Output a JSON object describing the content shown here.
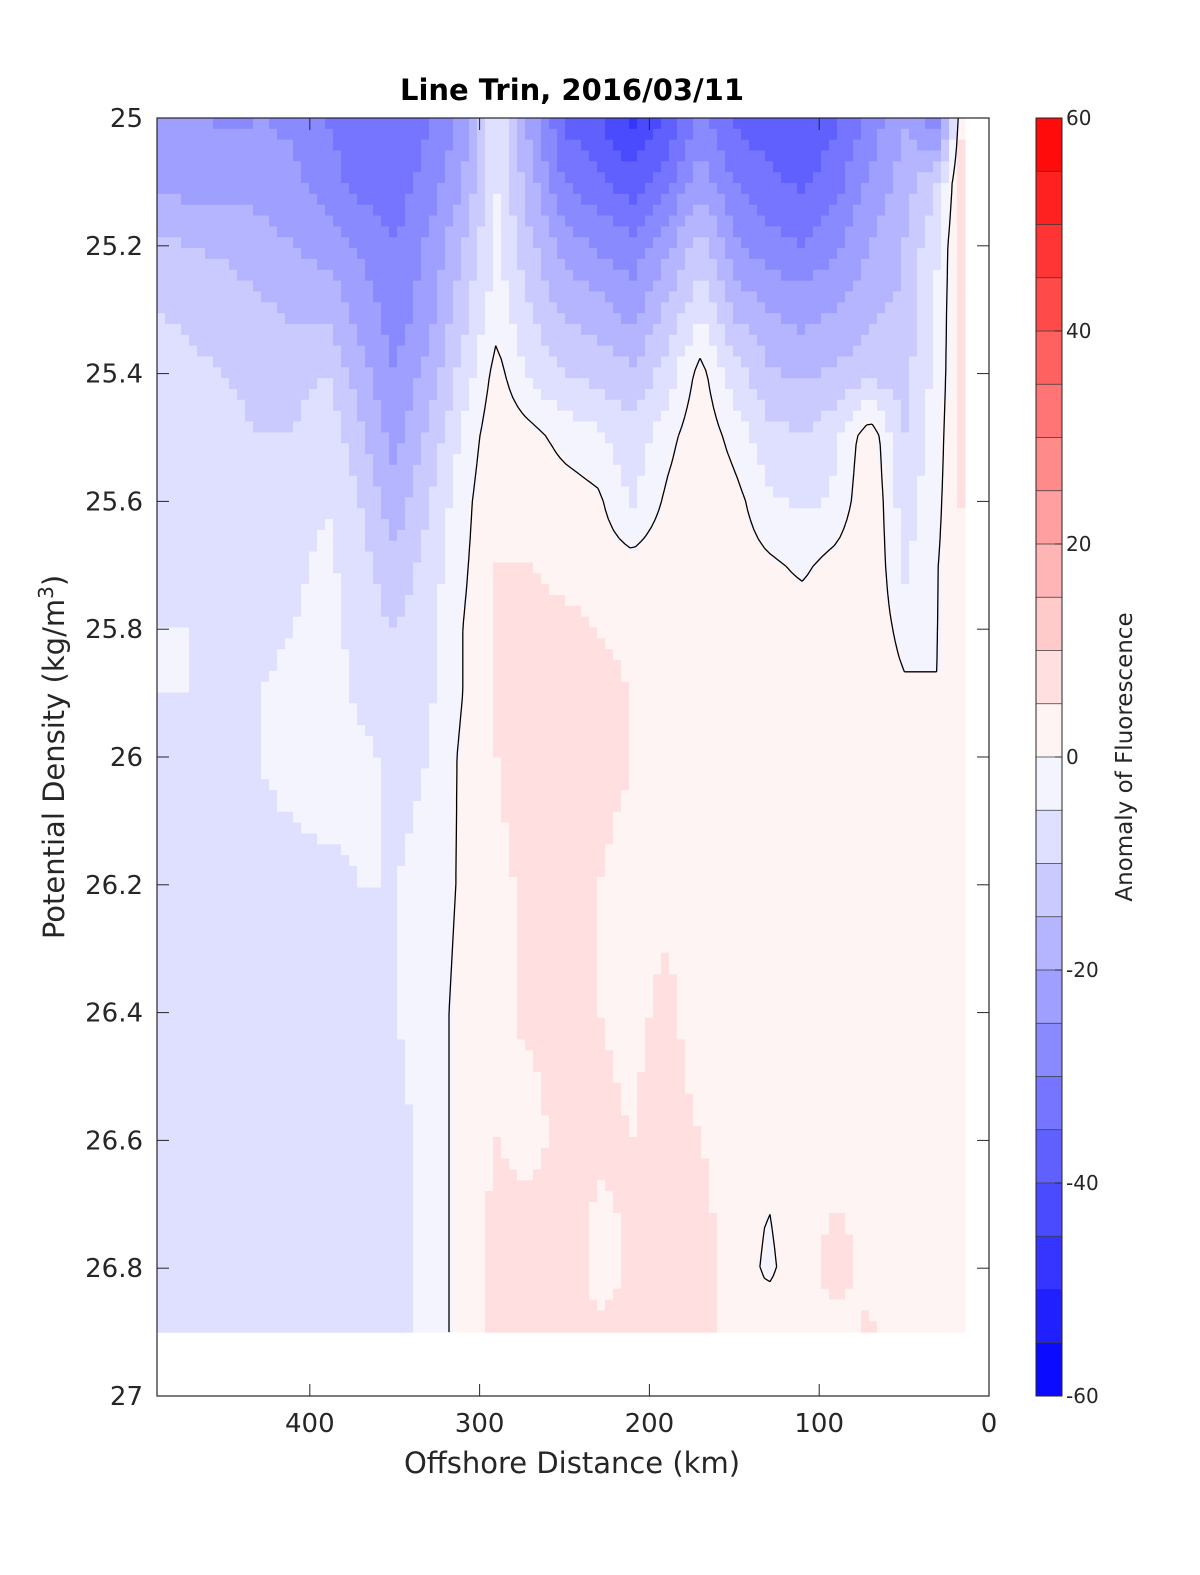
{
  "chart_data": {
    "type": "contour",
    "title": "Line Trin, 2016/03/11",
    "xlabel": "Offshore Distance (km)",
    "ylabel_main": "Potential Density (kg/m",
    "ylabel_sup": "3",
    "ylabel_end": ")",
    "xlim": [
      490,
      0
    ],
    "ylim": [
      25,
      27
    ],
    "y_reversed": true,
    "xticks": [
      400,
      300,
      200,
      100,
      0
    ],
    "xtick_labels": [
      "400",
      "300",
      "200",
      "100",
      "0"
    ],
    "yticks": [
      25,
      25.2,
      25.4,
      25.6,
      25.8,
      26,
      26.2,
      26.4,
      26.6,
      26.8,
      27
    ],
    "ytick_labels": [
      "25",
      "25.2",
      "25.4",
      "25.6",
      "25.8",
      "26",
      "26.2",
      "26.4",
      "26.6",
      "26.8",
      "27"
    ],
    "colorbar": {
      "label": "Anomaly of Fluorescence",
      "range": [
        -60,
        60
      ],
      "levels": 24,
      "ticks": [
        60,
        40,
        20,
        0,
        -20,
        -40,
        -60
      ],
      "tick_labels": [
        "60",
        "40",
        "20",
        "0",
        "-20",
        "-40",
        "-60"
      ],
      "color_min": "#0000ff",
      "color_max": "#ff0000"
    },
    "zero_contour_color": "#000000",
    "field": {
      "x_km": [
        490,
        470,
        450,
        430,
        410,
        390,
        370,
        350,
        330,
        310,
        290,
        270,
        250,
        230,
        210,
        190,
        170,
        150,
        130,
        110,
        90,
        70,
        50,
        30,
        15
      ],
      "density": [
        25.0,
        25.1,
        25.2,
        25.3,
        25.4,
        25.5,
        25.6,
        25.7,
        25.8,
        25.9,
        26.0,
        26.2,
        26.4,
        26.6,
        26.8,
        26.9
      ],
      "anomaly": [
        [
          -24,
          -24,
          -26,
          -25,
          -26,
          -30,
          -33,
          -35,
          -30,
          -24,
          -6,
          -22,
          -36,
          -40,
          -46,
          -40,
          -28,
          -36,
          -38,
          -40,
          -36,
          -28,
          -20,
          -30,
          8
        ],
        [
          -22,
          -22,
          -22,
          -22,
          -24,
          -28,
          -32,
          -33,
          -28,
          -20,
          -5,
          -18,
          -30,
          -34,
          -38,
          -32,
          -22,
          -30,
          -34,
          -36,
          -32,
          -24,
          -18,
          -10,
          8
        ],
        [
          -14,
          -15,
          -16,
          -18,
          -20,
          -22,
          -26,
          -30,
          -24,
          -15,
          -4,
          -14,
          -22,
          -26,
          -28,
          -22,
          -12,
          -24,
          -28,
          -30,
          -26,
          -20,
          -15,
          -5,
          8
        ],
        [
          -10,
          -11,
          -12,
          -14,
          -16,
          -16,
          -22,
          -28,
          -22,
          -12,
          -2,
          -10,
          -16,
          -18,
          -22,
          -14,
          -6,
          -16,
          -20,
          -22,
          -20,
          -16,
          -14,
          -4,
          8
        ],
        [
          -8,
          -9,
          -10,
          -11,
          -12,
          -10,
          -18,
          -25,
          -18,
          -8,
          2,
          -6,
          -10,
          -12,
          -14,
          -8,
          2,
          -8,
          -14,
          -16,
          -14,
          -12,
          -12,
          -3,
          7
        ],
        [
          -7,
          -8,
          -9,
          -10,
          -10,
          -6,
          -14,
          -22,
          -14,
          -4,
          4,
          2,
          -2,
          -4,
          -8,
          -2,
          4,
          -2,
          -8,
          -10,
          -6,
          4,
          -10,
          -2,
          7
        ],
        [
          -6,
          -7,
          -8,
          -9,
          -8,
          -5,
          -10,
          -18,
          -10,
          -2,
          5,
          4,
          3,
          1,
          -6,
          1,
          5,
          2,
          -4,
          -6,
          -4,
          5,
          -8,
          -1,
          6
        ],
        [
          -6,
          -6,
          -7,
          -7,
          -6,
          -4,
          -8,
          -14,
          -8,
          -1,
          5,
          5,
          4,
          3,
          2,
          4,
          5,
          3,
          1,
          -1,
          2,
          5,
          -6,
          0,
          4
        ],
        [
          -5,
          -5,
          -6,
          -6,
          -5,
          -3,
          -7,
          -10,
          -6,
          0,
          5,
          6,
          6,
          5,
          4,
          4,
          4,
          4,
          3,
          3,
          3,
          4,
          -2,
          0,
          3
        ],
        [
          -5,
          -5,
          -6,
          -5,
          -4,
          -3,
          -6,
          -8,
          -6,
          0,
          5,
          7,
          7,
          6,
          5,
          4,
          5,
          4,
          3,
          3,
          3,
          4,
          1,
          0,
          2
        ],
        [
          -6,
          -6,
          -5,
          -5,
          -4,
          -3,
          -4,
          -6,
          -5,
          1,
          5,
          7,
          7,
          6,
          5,
          3,
          3,
          3,
          3,
          3,
          3,
          3,
          2,
          0,
          2
        ],
        [
          -7,
          -7,
          -7,
          -6,
          -6,
          -6,
          -5,
          -5,
          -4,
          1,
          4,
          6,
          6,
          5,
          4,
          4,
          3,
          3,
          3,
          3,
          3,
          3,
          2,
          0,
          2
        ],
        [
          -7,
          -7,
          -7,
          -6,
          -7,
          -6,
          -6,
          -5,
          -3,
          2,
          4,
          6,
          7,
          5,
          4,
          6,
          3,
          3,
          3,
          3,
          3,
          3,
          2,
          0,
          2
        ],
        [
          -7,
          -8,
          -8,
          -7,
          -6,
          -6,
          -7,
          -7,
          -3,
          2,
          5,
          3,
          7,
          6,
          5,
          7,
          5,
          3,
          1,
          3,
          3,
          5,
          2,
          0,
          4
        ],
        [
          -7,
          -8,
          -8,
          -7,
          -8,
          -7,
          -6,
          -7,
          -3,
          2,
          7,
          9,
          8,
          3,
          6,
          5,
          7,
          3,
          -1,
          3,
          7,
          3,
          2,
          0,
          2
        ],
        [
          -6,
          -7,
          -8,
          -7,
          -7,
          -7,
          -6,
          -7,
          -3,
          2,
          6,
          7,
          6,
          6,
          6,
          6,
          7,
          3,
          3,
          3,
          3,
          6,
          2,
          0,
          2
        ]
      ]
    }
  }
}
